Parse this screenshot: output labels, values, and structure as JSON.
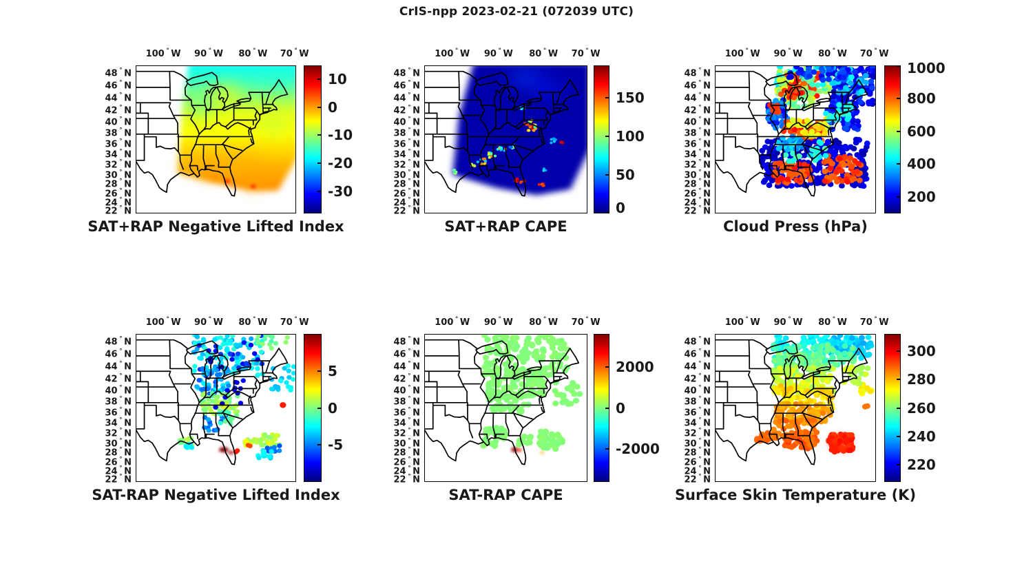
{
  "figure": {
    "title": "CrIS-npp 2023-02-21 (072039 UTC)"
  },
  "axes": {
    "lon_ticks": [
      {
        "num": "100",
        "dir": "W"
      },
      {
        "num": "90",
        "dir": "W"
      },
      {
        "num": "80",
        "dir": "W"
      },
      {
        "num": "70",
        "dir": "W"
      }
    ],
    "lat_ticks": [
      {
        "num": "48",
        "dir": "N"
      },
      {
        "num": "46",
        "dir": "N"
      },
      {
        "num": "44",
        "dir": "N"
      },
      {
        "num": "42",
        "dir": "N"
      },
      {
        "num": "40",
        "dir": "N"
      },
      {
        "num": "38",
        "dir": "N"
      },
      {
        "num": "36",
        "dir": "N"
      },
      {
        "num": "34",
        "dir": "N"
      },
      {
        "num": "32",
        "dir": "N"
      },
      {
        "num": "30",
        "dir": "N"
      },
      {
        "num": "28",
        "dir": "N"
      },
      {
        "num": "26",
        "dir": "N"
      },
      {
        "num": "24",
        "dir": "N"
      },
      {
        "num": "22",
        "dir": "N"
      }
    ]
  },
  "overlay_format": {
    "cluster_fields": [
      "x_pct",
      "y_pct",
      "rx_pct",
      "ry_pct",
      "count",
      "value_min",
      "value_max",
      "dot_radius_pct"
    ],
    "patch_fields": [
      "x_pct",
      "y_pct",
      "rx_pct",
      "ry_pct",
      "value",
      "blur_px"
    ],
    "gradient_fields": [
      "offset_pct",
      "value"
    ]
  },
  "chart_data": [
    {
      "type": "map-swath",
      "title": "SAT+RAP Negative Lifted Index",
      "colorbar": {
        "range": [
          -38,
          15
        ],
        "ticks": [
          10,
          0,
          -10,
          -20,
          -30
        ],
        "colormap": "jet"
      },
      "swath": [
        [
          33,
          -2
        ],
        [
          102,
          -2
        ],
        [
          102,
          61
        ],
        [
          89,
          85
        ],
        [
          72,
          85
        ],
        [
          47,
          79
        ],
        [
          26,
          73
        ],
        [
          29,
          28
        ]
      ],
      "gradient": [
        [
          0,
          -18
        ],
        [
          14,
          -15
        ],
        [
          28,
          -10
        ],
        [
          40,
          -6
        ],
        [
          55,
          -5
        ],
        [
          68,
          -3
        ],
        [
          80,
          -1
        ],
        [
          100,
          1
        ]
      ],
      "patches": [
        [
          55,
          20,
          9,
          6,
          -6,
          6
        ],
        [
          88,
          7,
          9,
          4,
          -16,
          6
        ],
        [
          40,
          27,
          6,
          6,
          -14,
          6
        ],
        [
          86,
          40,
          9,
          5,
          -8,
          6
        ],
        [
          55,
          66,
          24,
          6,
          -1,
          6
        ],
        [
          47,
          73,
          6,
          3,
          0.5,
          4
        ],
        [
          74,
          78,
          9,
          4,
          0,
          5
        ],
        [
          50,
          76,
          2,
          1.2,
          2,
          2
        ],
        [
          61,
          80,
          2,
          1.2,
          1.5,
          2
        ],
        [
          57,
          78.5,
          1.6,
          1.1,
          8,
          1
        ],
        [
          73.5,
          82,
          1.6,
          1.1,
          7.5,
          1
        ]
      ],
      "clusters": []
    },
    {
      "type": "map-swath",
      "title": "SAT+RAP CAPE",
      "colorbar": {
        "range": [
          0,
          192
        ],
        "ticks": [
          150,
          100,
          50,
          0
        ],
        "colormap": "jet"
      },
      "swath": [
        [
          30,
          -2
        ],
        [
          102,
          -2
        ],
        [
          102,
          56
        ],
        [
          90,
          84
        ],
        [
          69,
          88
        ],
        [
          44,
          83
        ],
        [
          17,
          74
        ],
        [
          21,
          34
        ]
      ],
      "base_value": 8,
      "patches": [
        [
          62,
          8,
          9,
          4,
          35,
          6
        ],
        [
          75,
          15,
          8,
          4,
          28,
          6
        ]
      ],
      "clusters": [
        [
          35,
          65,
          2.5,
          2,
          12,
          60,
          185,
          0.9
        ],
        [
          41.5,
          60.5,
          2.5,
          2,
          11,
          60,
          175,
          0.9
        ],
        [
          47.5,
          57,
          2.5,
          1.6,
          9,
          40,
          150,
          0.9
        ],
        [
          54,
          55,
          3,
          1.4,
          9,
          40,
          100,
          0.9
        ],
        [
          66,
          42,
          3,
          2.2,
          14,
          80,
          190,
          1.0
        ],
        [
          64,
          38.5,
          2.2,
          1.6,
          8,
          60,
          160,
          0.9
        ],
        [
          61,
          28.5,
          1.8,
          1.2,
          5,
          40,
          90,
          0.8
        ],
        [
          80,
          51,
          2.2,
          1.6,
          8,
          40,
          100,
          0.9
        ],
        [
          85,
          52.5,
          1.6,
          1.2,
          6,
          160,
          190,
          0.9
        ],
        [
          56,
          77.5,
          1.6,
          1.2,
          6,
          150,
          190,
          0.9
        ],
        [
          60.5,
          79,
          1.4,
          1,
          5,
          140,
          185,
          0.9
        ],
        [
          72,
          80.5,
          1.6,
          1.2,
          6,
          150,
          190,
          0.9
        ],
        [
          18.5,
          72,
          1.4,
          1.2,
          5,
          85,
          130,
          0.9
        ],
        [
          74.5,
          70.5,
          1.2,
          1,
          4,
          50,
          80,
          0.8
        ],
        [
          30,
          68,
          1.5,
          1.2,
          5,
          90,
          140,
          0.9
        ]
      ]
    },
    {
      "type": "map-scatter",
      "title": "Cloud Press (hPa)",
      "colorbar": {
        "range": [
          100,
          1000
        ],
        "ticks": [
          1000,
          800,
          600,
          400,
          200
        ],
        "colormap": "jet"
      },
      "patches": [],
      "clusters": [
        [
          55,
          9,
          17,
          9,
          90,
          380,
          600,
          1.9
        ],
        [
          54,
          12,
          12,
          9,
          26,
          750,
          880,
          1.9
        ],
        [
          86,
          13,
          14,
          13,
          130,
          140,
          280,
          1.9
        ],
        [
          83,
          10,
          12,
          9,
          30,
          350,
          450,
          1.9
        ],
        [
          50,
          18,
          11,
          10,
          80,
          480,
          680,
          1.9
        ],
        [
          48,
          16,
          8,
          7,
          18,
          800,
          900,
          1.9
        ],
        [
          39,
          33,
          6,
          10,
          55,
          200,
          360,
          1.9
        ],
        [
          37,
          30,
          3,
          4,
          8,
          820,
          880,
          1.9
        ],
        [
          56,
          46,
          14,
          8,
          95,
          760,
          890,
          1.9
        ],
        [
          58,
          42,
          13,
          6,
          30,
          600,
          720,
          1.9
        ],
        [
          80,
          35,
          10,
          9,
          60,
          180,
          300,
          1.9
        ],
        [
          77,
          32,
          8,
          6,
          22,
          420,
          520,
          1.9
        ],
        [
          62,
          66,
          33,
          16,
          290,
          130,
          220,
          1.9
        ],
        [
          48,
          73,
          12,
          7,
          60,
          780,
          880,
          1.9
        ],
        [
          80,
          70,
          12,
          9,
          55,
          790,
          880,
          1.9
        ],
        [
          55,
          58,
          14,
          7,
          30,
          400,
          520,
          1.9
        ],
        [
          47,
          52,
          8,
          5,
          25,
          320,
          420,
          1.9
        ],
        [
          65,
          5,
          20,
          5,
          40,
          180,
          300,
          1.9
        ]
      ]
    },
    {
      "type": "map-scatter",
      "title": "SAT-RAP Negative Lifted Index",
      "colorbar": {
        "range": [
          -10,
          10
        ],
        "ticks": [
          5,
          0,
          -5
        ],
        "colormap": "jet"
      },
      "patches": [
        [
          55,
          78.5,
          3,
          1.8,
          9.8,
          1
        ],
        [
          59.5,
          80.5,
          1.7,
          1.2,
          9.2,
          1
        ]
      ],
      "clusters": [
        [
          58,
          14,
          22,
          14,
          120,
          -4.5,
          -1.5,
          1.6
        ],
        [
          60,
          12,
          22,
          12,
          25,
          -8,
          -6,
          1.6
        ],
        [
          85,
          6,
          10,
          6,
          15,
          -1,
          0.5,
          1.6
        ],
        [
          48,
          32,
          10,
          9,
          50,
          -6,
          -2.5,
          1.6
        ],
        [
          52,
          47,
          12,
          7,
          55,
          -1,
          1.5,
          1.6
        ],
        [
          54,
          48,
          6,
          3,
          12,
          0.5,
          2,
          1.6
        ],
        [
          57,
          40,
          12,
          10,
          12,
          -9,
          -7,
          1.6
        ],
        [
          92,
          30,
          7,
          9,
          22,
          -4,
          -2,
          1.6
        ],
        [
          50,
          62,
          8,
          7,
          15,
          -6,
          -3.5,
          1.6
        ],
        [
          31,
          73,
          4,
          2.5,
          10,
          -0.5,
          1.5,
          1.6
        ],
        [
          33,
          76,
          3,
          2,
          6,
          -3,
          -2,
          1.6
        ],
        [
          92,
          48,
          0.5,
          0.5,
          1,
          7,
          7,
          2.0
        ],
        [
          63,
          79,
          1,
          1,
          2,
          6.5,
          7.5,
          1.6
        ],
        [
          72,
          73,
          4,
          3,
          14,
          0.5,
          2.5,
          1.6
        ],
        [
          70.5,
          75,
          1.2,
          1,
          2,
          5.5,
          6.5,
          1.6
        ],
        [
          84,
          72,
          6,
          4,
          30,
          0,
          2,
          1.6
        ],
        [
          86,
          77,
          4,
          3,
          10,
          -6,
          -4,
          1.6
        ],
        [
          80,
          82,
          5,
          3,
          14,
          -3.5,
          -2,
          1.6
        ],
        [
          58,
          57,
          6,
          5,
          14,
          -2,
          0,
          1.6
        ]
      ]
    },
    {
      "type": "map-scatter",
      "title": "SAT-RAP CAPE",
      "colorbar": {
        "range": [
          -3600,
          3600
        ],
        "ticks": [
          2000,
          0,
          -2000
        ],
        "colormap": "jet"
      },
      "patches": [
        [
          55.5,
          78.5,
          2.2,
          1.7,
          3400,
          1
        ],
        [
          58.5,
          78.8,
          1.3,
          1.1,
          2500,
          1
        ],
        [
          72.5,
          80.5,
          1.1,
          0.9,
          1500,
          1
        ]
      ],
      "clusters": [
        [
          62,
          14,
          26,
          14,
          150,
          0,
          120,
          2.0
        ],
        [
          55,
          33,
          18,
          10,
          90,
          0,
          120,
          2.0
        ],
        [
          52,
          47,
          12,
          7,
          40,
          0,
          100,
          2.0
        ],
        [
          44,
          67,
          7,
          4,
          20,
          0,
          100,
          2.0
        ],
        [
          40,
          74,
          4,
          3,
          10,
          0,
          100,
          2.0
        ],
        [
          78,
          72,
          7,
          6,
          40,
          0,
          120,
          2.0
        ],
        [
          62,
          72,
          4,
          3,
          10,
          0,
          100,
          2.0
        ],
        [
          88,
          40,
          8,
          8,
          20,
          0,
          100,
          2.0
        ]
      ]
    },
    {
      "type": "map-scatter",
      "title": "Surface Skin Temperature (K)",
      "colorbar": {
        "range": [
          208,
          312
        ],
        "ticks": [
          300,
          280,
          260,
          240,
          220
        ],
        "colormap": "jet"
      },
      "patches": [
        [
          79,
          74,
          5,
          4,
          296,
          3
        ],
        [
          73,
          73,
          2,
          2,
          295,
          2
        ]
      ],
      "clusters": [
        [
          62,
          6,
          26,
          6,
          70,
          242,
          250,
          1.9
        ],
        [
          85,
          8,
          13,
          8,
          60,
          238,
          246,
          1.9
        ],
        [
          52,
          14,
          16,
          7,
          60,
          250,
          258,
          1.9
        ],
        [
          55,
          21,
          18,
          8,
          80,
          256,
          264,
          1.9
        ],
        [
          55,
          31,
          19,
          9,
          90,
          264,
          272,
          1.9
        ],
        [
          55,
          43,
          18,
          8,
          90,
          272,
          280,
          1.9
        ],
        [
          55,
          54,
          17,
          7,
          80,
          280,
          286,
          1.9
        ],
        [
          50,
          65,
          14,
          7,
          55,
          284,
          290,
          1.9
        ],
        [
          31,
          70,
          5,
          3,
          18,
          285,
          290,
          1.9
        ],
        [
          52,
          74,
          10,
          4,
          30,
          288,
          293,
          1.9
        ],
        [
          60,
          72,
          4,
          3,
          12,
          286,
          290,
          1.9
        ],
        [
          79,
          74,
          7,
          6,
          70,
          293,
          298,
          1.9
        ],
        [
          73,
          73,
          2,
          2,
          8,
          294,
          297,
          1.9
        ],
        [
          95,
          36,
          4,
          6,
          10,
          270,
          276,
          1.9
        ],
        [
          94,
          49,
          1,
          1,
          2,
          286,
          288,
          1.9
        ],
        [
          75,
          14,
          12,
          7,
          40,
          252,
          260,
          1.9
        ],
        [
          88,
          28,
          8,
          6,
          25,
          262,
          270,
          1.9
        ]
      ]
    }
  ]
}
